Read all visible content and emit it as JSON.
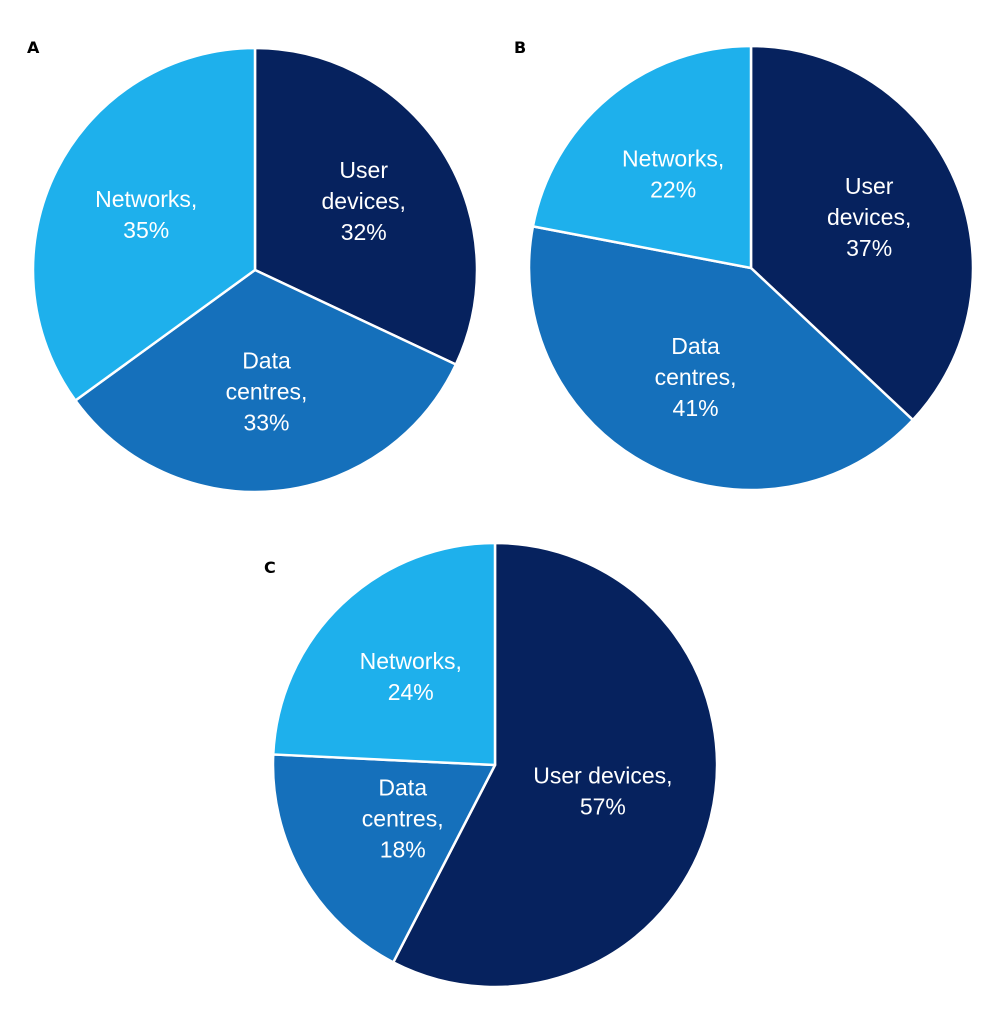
{
  "chart_data": [
    {
      "type": "pie",
      "panel": "A",
      "categories": [
        "User devices",
        "Data centres",
        "Networks"
      ],
      "values": [
        32,
        33,
        35
      ],
      "label_lines": [
        [
          "User",
          "devices,",
          "32%"
        ],
        [
          "Data",
          "centres,",
          "33%"
        ],
        [
          "Networks,",
          "35%"
        ]
      ],
      "colors": [
        "#06225e",
        "#1570bb",
        "#1eb0ec"
      ],
      "start": "12 o'clock, clockwise"
    },
    {
      "type": "pie",
      "panel": "B",
      "categories": [
        "User devices",
        "Data centres",
        "Networks"
      ],
      "values": [
        37,
        41,
        22
      ],
      "label_lines": [
        [
          "User",
          "devices,",
          "37%"
        ],
        [
          "Data",
          "centres,",
          "41%"
        ],
        [
          "Networks,",
          "22%"
        ]
      ],
      "colors": [
        "#06225e",
        "#1570bb",
        "#1eb0ec"
      ],
      "start": "12 o'clock, clockwise"
    },
    {
      "type": "pie",
      "panel": "C",
      "categories": [
        "User devices",
        "Data centres",
        "Networks"
      ],
      "values": [
        57,
        18,
        24
      ],
      "label_lines": [
        [
          "User devices,",
          "57%"
        ],
        [
          "Data",
          "centres,",
          "18%"
        ],
        [
          "Networks,",
          "24%"
        ]
      ],
      "colors": [
        "#06225e",
        "#1570bb",
        "#1eb0ec"
      ],
      "start": "12 o'clock, clockwise"
    }
  ]
}
